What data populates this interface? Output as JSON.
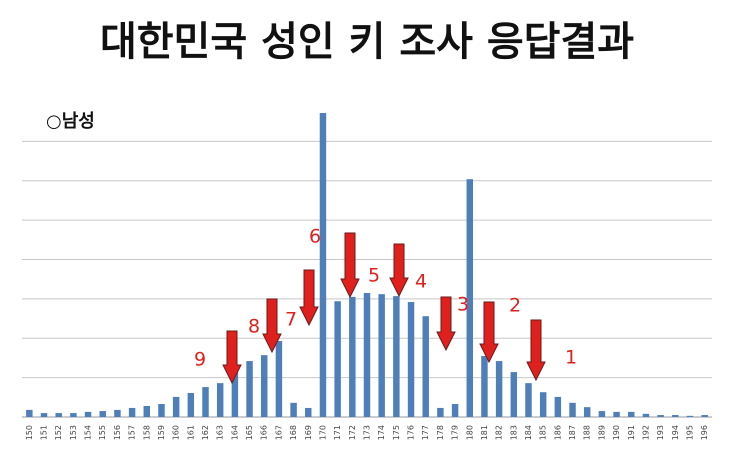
{
  "chart_data": {
    "type": "bar",
    "title": "대한민국 성인 키 조사 응답결과",
    "subtitle": "○남성",
    "categories": [
      "150",
      "151",
      "152",
      "153",
      "154",
      "155",
      "156",
      "157",
      "158",
      "159",
      "160",
      "161",
      "162",
      "163",
      "164",
      "165",
      "166",
      "167",
      "168",
      "169",
      "170",
      "171",
      "172",
      "173",
      "174",
      "175",
      "176",
      "177",
      "178",
      "179",
      "180",
      "181",
      "182",
      "183",
      "184",
      "185",
      "186",
      "187",
      "188",
      "189",
      "190",
      "191",
      "192",
      "193",
      "194",
      "195",
      "196"
    ],
    "values": [
      0.18,
      0.1,
      0.1,
      0.1,
      0.13,
      0.15,
      0.18,
      0.23,
      0.28,
      0.33,
      0.51,
      0.61,
      0.76,
      0.86,
      1.19,
      1.42,
      1.57,
      1.93,
      0.36,
      0.23,
      7.72,
      2.94,
      3.05,
      3.15,
      3.12,
      3.07,
      2.92,
      2.56,
      0.23,
      0.33,
      6.04,
      1.55,
      1.42,
      1.14,
      0.86,
      0.63,
      0.51,
      0.36,
      0.25,
      0.15,
      0.13,
      0.13,
      0.08,
      0.05,
      0.05,
      0.03,
      0.05
    ],
    "color": "#4f7fb8",
    "ylim": [
      0,
      8
    ],
    "yticks": [
      0,
      1,
      2,
      3,
      4,
      5,
      6,
      7
    ],
    "grid": true,
    "annotations": [
      "9",
      "8",
      "7",
      "6",
      "5",
      "4",
      "3",
      "2",
      "1"
    ]
  }
}
